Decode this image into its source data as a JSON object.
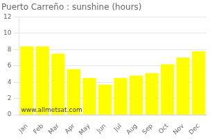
{
  "chart_data": {
    "type": "bar",
    "title": "Puerto Carreño : sunshine (hours)",
    "categories": [
      "Jan",
      "Feb",
      "Mar",
      "Apr",
      "May",
      "Jun",
      "Jul",
      "Aug",
      "Sep",
      "Oct",
      "Nov",
      "Dec"
    ],
    "values": [
      8.4,
      8.4,
      7.5,
      5.6,
      4.5,
      3.7,
      4.5,
      4.8,
      5.1,
      6.2,
      7.0,
      7.8
    ],
    "color": "#ffff00",
    "ylim": [
      0,
      12
    ],
    "yticks": [
      0,
      2,
      4,
      6,
      8,
      10,
      12
    ],
    "grid": true,
    "annotations": [
      "www.allmetsat.com"
    ]
  }
}
